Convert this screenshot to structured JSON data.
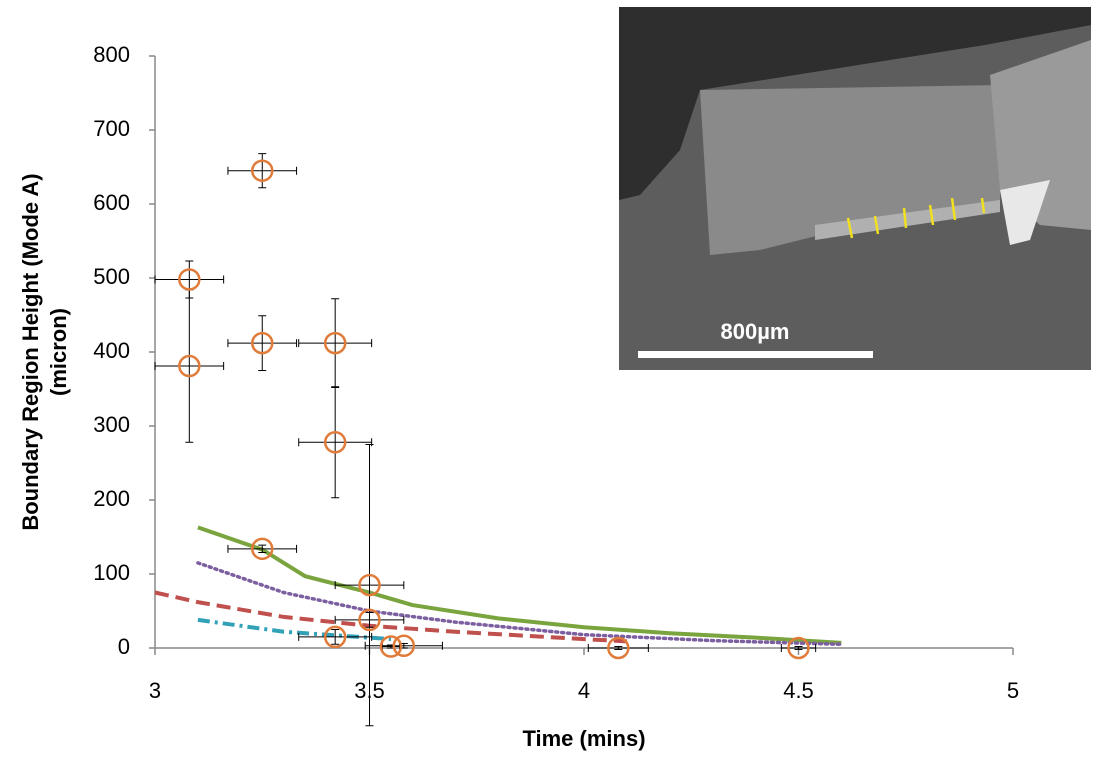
{
  "chart_data": {
    "type": "scatter",
    "xlabel": "Time (mins)",
    "ylabel": [
      "Boundary Region Height (Mode A)",
      "(micron)"
    ],
    "xlim": [
      3,
      5
    ],
    "xticks": [
      3,
      3.5,
      4,
      4.5,
      5
    ],
    "ylim": [
      0,
      800
    ],
    "yticks": [
      0,
      100,
      200,
      300,
      400,
      500,
      600,
      700,
      800
    ],
    "grid": false,
    "annotations": [
      "800µm"
    ],
    "series": [
      {
        "type": "line",
        "color": "#7aa43e",
        "style": "solid",
        "x": [
          3.1,
          3.25,
          3.35,
          3.5,
          3.6,
          3.8,
          4.0,
          4.2,
          4.4,
          4.6
        ],
        "values": [
          163,
          133,
          97,
          75,
          58,
          40,
          28,
          20,
          14,
          7
        ]
      },
      {
        "type": "line",
        "color": "#7b5fa0",
        "style": "dotted",
        "x": [
          3.1,
          3.3,
          3.5,
          3.7,
          4.0,
          4.3,
          4.6
        ],
        "values": [
          115,
          75,
          50,
          35,
          18,
          10,
          5
        ]
      },
      {
        "type": "line",
        "color": "#c0504d",
        "style": "dashed",
        "x": [
          3.0,
          3.1,
          3.3,
          3.5,
          3.7,
          4.0,
          4.1
        ],
        "values": [
          75,
          62,
          42,
          30,
          22,
          12,
          9
        ]
      },
      {
        "type": "line",
        "color": "#31a1b8",
        "style": "dashdot",
        "x": [
          3.1,
          3.2,
          3.3,
          3.4,
          3.55
        ],
        "values": [
          38,
          30,
          22,
          18,
          12
        ]
      },
      {
        "type": "scatter",
        "color": "#e07b39",
        "x": [
          3.08,
          3.08,
          3.25,
          3.25,
          3.25,
          3.42,
          3.42,
          3.42,
          3.5,
          3.5,
          3.55,
          3.58,
          4.08,
          4.5
        ],
        "values": [
          498,
          381,
          645,
          412,
          134,
          412,
          278,
          15,
          85,
          38,
          2,
          3,
          0,
          0
        ],
        "xerr": [
          0.08,
          0.08,
          0.08,
          0.08,
          0.08,
          0.085,
          0.085,
          0.085,
          0.08,
          0.08,
          0.02,
          0.09,
          0.07,
          0.04
        ],
        "yerr": [
          25,
          103,
          23,
          37,
          5,
          60,
          75,
          10,
          190,
          10,
          2,
          3,
          2,
          2
        ]
      }
    ]
  }
}
